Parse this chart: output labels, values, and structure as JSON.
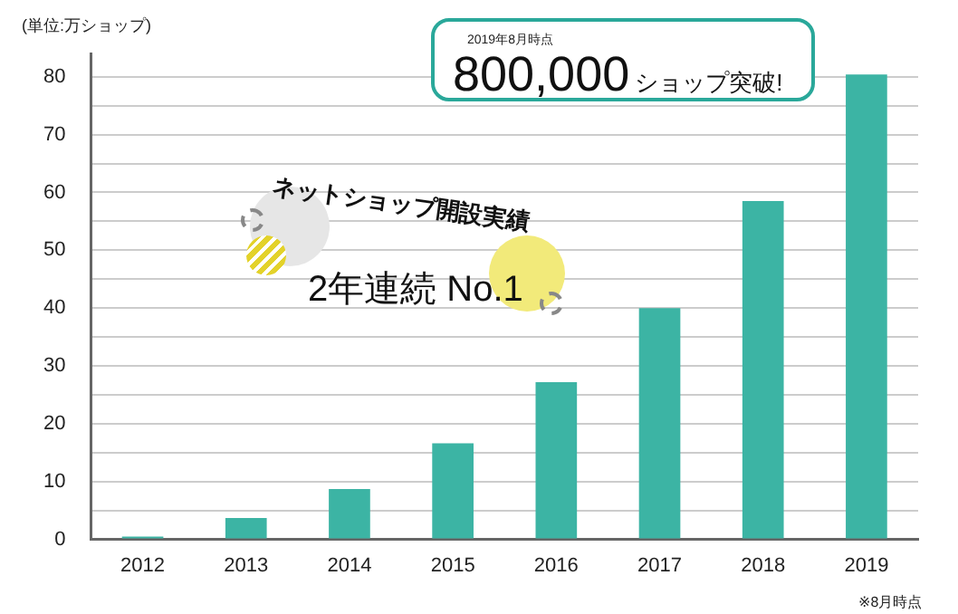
{
  "chart_data": {
    "type": "bar",
    "ylabel": "(単位:万ショップ)",
    "categories": [
      "2012",
      "2013",
      "2014",
      "2015",
      "2016",
      "2017",
      "2018",
      "2019"
    ],
    "values": [
      0.5,
      3.7,
      8.7,
      16.6,
      27.2,
      40,
      58.5,
      80.4
    ],
    "color": "#3cb4a4",
    "ylim": [
      0,
      84
    ],
    "yticks": [
      0,
      {
        "value": 5,
        "label": null
      },
      10,
      {
        "value": 15,
        "label": null
      },
      20,
      {
        "value": 25,
        "label": null
      },
      30,
      {
        "value": 35,
        "label": null
      },
      40,
      {
        "value": 45,
        "label": null
      },
      50,
      {
        "value": 55,
        "label": null
      },
      60,
      {
        "value": 65,
        "label": null
      },
      70,
      {
        "value": 75,
        "label": null
      },
      80
    ],
    "grid": "y",
    "legend": false,
    "annotations": [
      "2019年8月時点",
      "800,000ショップ突破!",
      "ネットショップ開設実績",
      "2年連続 No.1",
      "※8月時点"
    ]
  }
}
